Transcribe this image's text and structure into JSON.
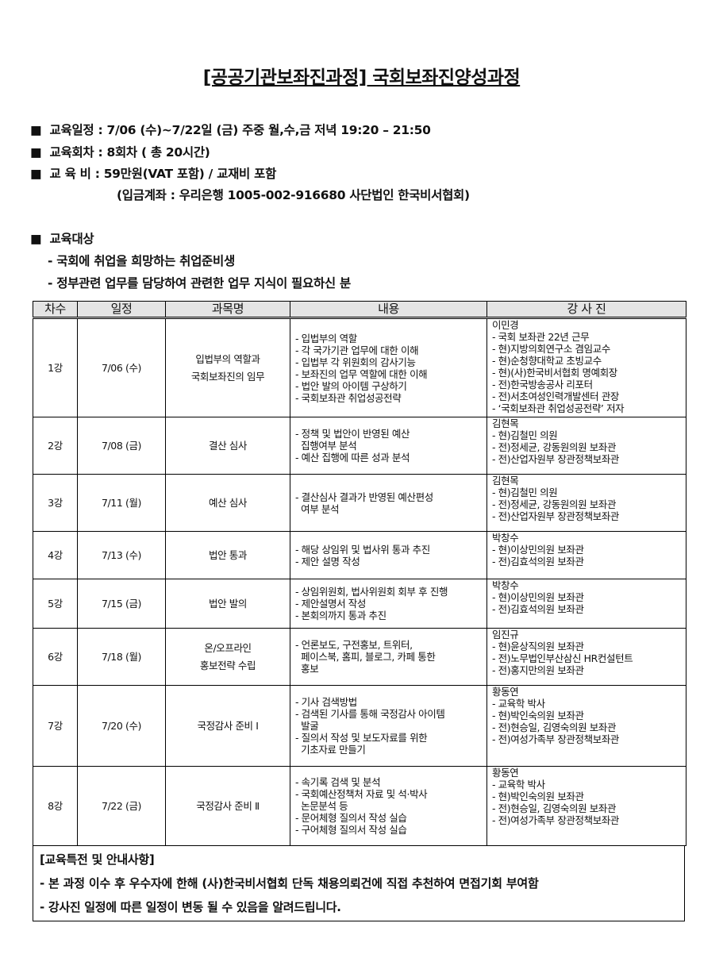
{
  "title": "[공공기관보좌진과정] 국회보좌진양성과정",
  "info": {
    "schedule": "■  교육일정 : 7/06 (수)~7/22일 (금) 주중 월,수,금 저녁 19:20 – 21:50",
    "sessions": "■  교육회차 : 8회차 ( 총 20시간)",
    "fee": "■  교 육 비 : 59만원(VAT 포함) / 교재비 포함",
    "account": "(입금계좌 : 우리은행 1005-002-916680 사단법인 한국비서협회)",
    "target_heading": "■  교육대상",
    "targets": [
      "- 국회에 취업을 희망하는 취업준비생",
      "- 정부관련 업무를 담당하여 관련한 업무 지식이 필요하신 분"
    ]
  },
  "table": {
    "headers": [
      "차수",
      "일정",
      "과목명",
      "내용",
      "강 사 진"
    ],
    "rows": [
      {
        "no": "1강",
        "date": "7/06 (수)",
        "subject": [
          "입법부의 역할과",
          "국회보좌진의 임무"
        ],
        "content": [
          "- 입법부의 역할",
          "- 각 국가기관 업무에 대한 이해",
          "- 입법부 각 위원회의 감사기능",
          "- 보좌진의 업무 역할에 대한 이해",
          "- 법안 발의 아이템 구상하기",
          "- 국회보좌관 취업성공전략"
        ],
        "teacher": [
          "이민경",
          "- 국회 보좌관 22년 근무",
          "- 현)지방의회연구소 겸임교수",
          "- 현)순청향대학교 초빙교수",
          "- 현)(사)한국비서협회 명예회장",
          "- 전)한국방송공사 리포터",
          "- 전)서초여성인력개발센터 관장",
          "- ‘국회보좌관 취업성공전략’ 저자"
        ]
      },
      {
        "no": "2강",
        "date": "7/08 (금)",
        "subject": [
          "결산 심사"
        ],
        "content": [
          "- 정책 및 법안이 반영된 예산",
          "  집행여부 분석",
          "- 예산 집행에 따른 성과 분석"
        ],
        "teacher": [
          "김현목",
          "- 현)김철민 의원",
          "- 전)정세균, 강동원의원 보좌관",
          "- 전)산업자원부 장관정책보좌관"
        ]
      },
      {
        "no": "3강",
        "date": "7/11 (월)",
        "subject": [
          "예산 심사"
        ],
        "content": [
          "- 결산심사 결과가 반영된 예산편성",
          "  여부 분석"
        ],
        "teacher": [
          "김현목",
          "- 현)김철민 의원",
          "- 전)정세균, 강동원의원 보좌관",
          "- 전)산업자원부 장관정책보좌관"
        ]
      },
      {
        "no": "4강",
        "date": "7/13 (수)",
        "subject": [
          "법안 통과"
        ],
        "content": [
          "- 해당 상임위 및 법사위 통과 추진",
          "- 제안 설명 작성"
        ],
        "teacher": [
          "박창수",
          "- 현)이상민의원 보좌관",
          "- 전)김효석의원 보좌관"
        ]
      },
      {
        "no": "5강",
        "date": "7/15 (금)",
        "subject": [
          "법안 발의"
        ],
        "content": [
          "- 상임위원회, 법사위원회 회부 후 진행",
          "- 제안설명서 작성",
          "- 본회의까지 통과 추진"
        ],
        "teacher": [
          "박창수",
          "- 현)이상민의원 보좌관",
          "- 전)김효석의원 보좌관"
        ]
      },
      {
        "no": "6강",
        "date": "7/18 (월)",
        "subject": [
          "온/오프라인",
          "홍보전략 수립"
        ],
        "content": [
          "- 언론보도, 구전홍보, 트위터,",
          "  페이스북, 홈피, 블로그, 카페 통한",
          "  홍보"
        ],
        "teacher": [
          "임진규",
          "- 현)윤상직의원 보좌관",
          "- 전)노무법인부산삼신 HR컨설턴트",
          "- 전)홍지만의원 보좌관"
        ]
      },
      {
        "no": "7강",
        "date": "7/20 (수)",
        "subject": [
          "국정감사 준비 Ⅰ"
        ],
        "content": [
          "- 기사 검색방법",
          "- 검색된 기사를 통해 국정감사 아이템",
          "  발굴",
          "- 질의서 작성 및 보도자료를 위한",
          "  기초자료 만들기"
        ],
        "teacher": [
          "황동연",
          "- 교육학 박사",
          "- 현)박인숙의원 보좌관",
          "- 전)현승일, 김영숙의원 보좌관",
          "- 전)여성가족부 장관정책보좌관"
        ]
      },
      {
        "no": "8강",
        "date": "7/22 (금)",
        "subject": [
          "국정감사 준비 Ⅱ"
        ],
        "content": [
          "- 속기록 검색 및 분석",
          "- 국회예산정책처 자료 및 석·박사",
          "  논문분석 등",
          "- 문어체형 질의서 작성 실습",
          "- 구어체형 질의서 작성 실습"
        ],
        "teacher": [
          "황동연",
          "- 교육학 박사",
          "- 현)박인숙의원 보좌관",
          "- 전)현승일, 김영숙의원 보좌관",
          "- 전)여성가족부 장관정책보좌관"
        ]
      }
    ]
  },
  "notes": {
    "heading": "[교육특전 및 안내사항]",
    "items": [
      "- 본 과정 이수 후 우수자에 한해 (사)한국비서협회 단독 채용의뢰건에 직접 추천하여 면접기회 부여함",
      "- 강사진 일정에 따른 일정이 변동 될 수 있음을 알려드립니다."
    ]
  }
}
